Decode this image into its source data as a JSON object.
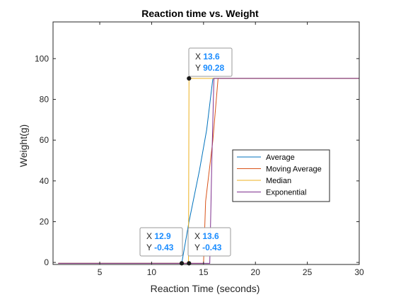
{
  "chart_data": {
    "type": "line",
    "title": "Reaction time vs. Weight",
    "xlabel": "Reaction Time (seconds)",
    "ylabel": "Weight(g)",
    "xlim": [
      0.5,
      30
    ],
    "ylim": [
      -1,
      118
    ],
    "xticks": [
      5,
      10,
      15,
      20,
      25,
      30
    ],
    "yticks": [
      0,
      20,
      40,
      60,
      80,
      100
    ],
    "grid": false,
    "legend_position": "center-right",
    "series": [
      {
        "name": "Average",
        "color": "#0072BD",
        "x": [
          1,
          12.9,
          13.6,
          14.6,
          15.3,
          15.9,
          16.5,
          30
        ],
        "y": [
          -0.43,
          -0.43,
          20,
          45,
          65,
          90.28,
          90.28,
          90.28
        ]
      },
      {
        "name": "Moving Average",
        "color": "#D95319",
        "x": [
          1,
          13.6,
          15.0,
          15.2,
          15.9,
          16.4,
          30
        ],
        "y": [
          -0.43,
          -0.43,
          -0.43,
          30,
          60,
          90.28,
          90.28
        ]
      },
      {
        "name": "Median",
        "color": "#EDB120",
        "x": [
          1,
          13.55,
          13.6,
          30
        ],
        "y": [
          -0.43,
          -0.43,
          90.28,
          90.28
        ]
      },
      {
        "name": "Exponential",
        "color": "#7E2F8E",
        "x": [
          1,
          15.6,
          15.8,
          16.0,
          30
        ],
        "y": [
          -0.43,
          -0.43,
          50,
          90.28,
          90.28
        ]
      }
    ],
    "datatips": [
      {
        "x": 13.6,
        "y": 90.28,
        "x_label": "X",
        "y_label": "Y",
        "x_text": "13.6",
        "y_text": "90.28"
      },
      {
        "x": 12.9,
        "y": -0.43,
        "x_label": "X",
        "y_label": "Y",
        "x_text": "12.9",
        "y_text": "-0.43"
      },
      {
        "x": 13.6,
        "y": -0.43,
        "x_label": "X",
        "y_label": "Y",
        "x_text": "13.6",
        "y_text": "-0.43"
      }
    ]
  }
}
